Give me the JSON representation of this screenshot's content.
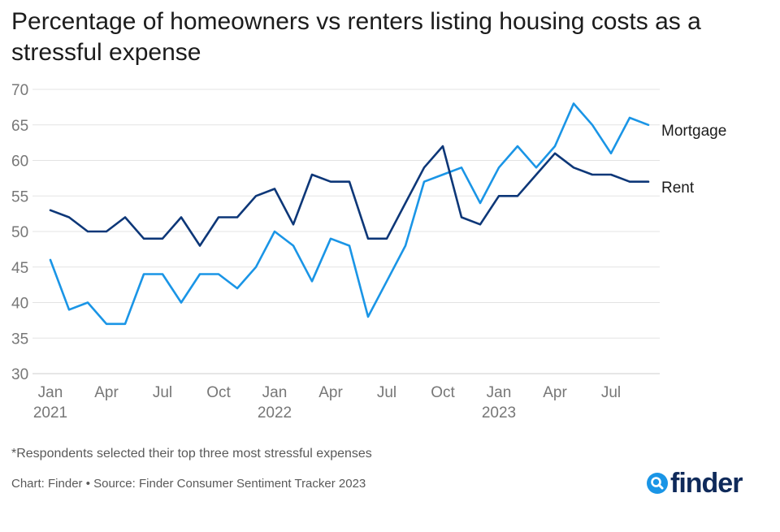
{
  "chart_data": {
    "type": "line",
    "title": "Percentage of homeowners vs renters listing housing costs as a stressful expense",
    "xlabel": "",
    "ylabel": "",
    "ylim": [
      30,
      70
    ],
    "yticks": [
      30,
      35,
      40,
      45,
      50,
      55,
      60,
      65,
      70
    ],
    "grid": true,
    "legend_placement": "right end of lines",
    "x": [
      "2021-01",
      "2021-02",
      "2021-03",
      "2021-04",
      "2021-05",
      "2021-06",
      "2021-07",
      "2021-08",
      "2021-09",
      "2021-10",
      "2021-11",
      "2021-12",
      "2022-01",
      "2022-02",
      "2022-03",
      "2022-04",
      "2022-05",
      "2022-06",
      "2022-07",
      "2022-08",
      "2022-09",
      "2022-10",
      "2022-11",
      "2022-12",
      "2023-01",
      "2023-02",
      "2023-03",
      "2023-04",
      "2023-05",
      "2023-06",
      "2023-07",
      "2023-08",
      "2023-09"
    ],
    "xticks": [
      {
        "index": 0,
        "label": "Jan",
        "year": "2021"
      },
      {
        "index": 3,
        "label": "Apr",
        "year": ""
      },
      {
        "index": 6,
        "label": "Jul",
        "year": ""
      },
      {
        "index": 9,
        "label": "Oct",
        "year": ""
      },
      {
        "index": 12,
        "label": "Jan",
        "year": "2022"
      },
      {
        "index": 15,
        "label": "Apr",
        "year": ""
      },
      {
        "index": 18,
        "label": "Jul",
        "year": ""
      },
      {
        "index": 21,
        "label": "Oct",
        "year": ""
      },
      {
        "index": 24,
        "label": "Jan",
        "year": "2023"
      },
      {
        "index": 27,
        "label": "Apr",
        "year": ""
      },
      {
        "index": 30,
        "label": "Jul",
        "year": ""
      }
    ],
    "series": [
      {
        "name": "Mortgage",
        "color": "#1a95e6",
        "values": [
          46,
          39,
          40,
          37,
          37,
          44,
          44,
          40,
          44,
          44,
          42,
          45,
          50,
          48,
          43,
          49,
          48,
          38,
          43,
          48,
          57,
          58,
          59,
          54,
          59,
          62,
          59,
          62,
          68,
          65,
          61,
          66,
          65
        ]
      },
      {
        "name": "Rent",
        "color": "#0d3778",
        "values": [
          53,
          52,
          50,
          50,
          52,
          49,
          49,
          52,
          48,
          52,
          52,
          55,
          56,
          51,
          58,
          57,
          57,
          49,
          49,
          54,
          59,
          62,
          52,
          51,
          55,
          55,
          58,
          61,
          59,
          58,
          58,
          57,
          57
        ]
      }
    ]
  },
  "footnote": "*Respondents selected their top three most stressful expenses",
  "source": "Chart: Finder • Source: Finder Consumer Sentiment Tracker 2023",
  "logo": {
    "text": "finder",
    "icon": "magnifier-icon",
    "icon_color": "#1a95e6",
    "text_color": "#0f2a5a"
  },
  "colors": {
    "grid": "#e3e3e3",
    "axis": "#cccccc",
    "tick_text": "#777777"
  }
}
